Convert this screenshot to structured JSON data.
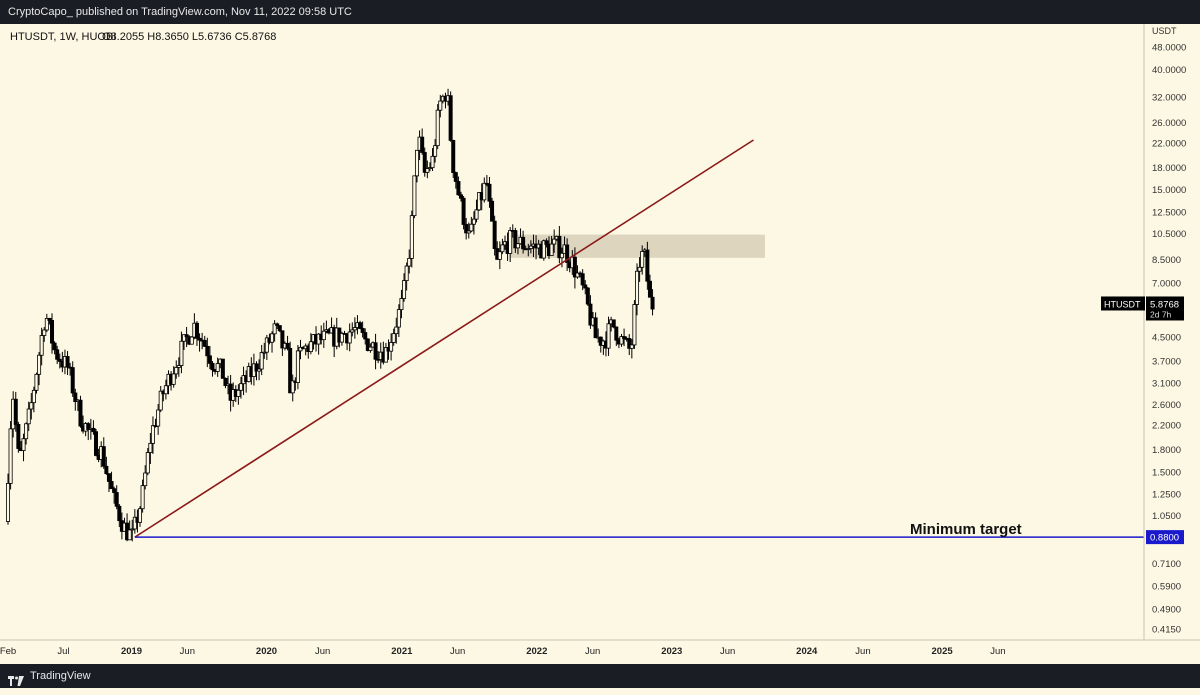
{
  "header": {
    "publisher": "CryptoCapo_ published on TradingView.com, Nov 11, 2022 09:58 UTC"
  },
  "footer": {
    "brand": "TradingView"
  },
  "colors": {
    "background": "#fdf8e4",
    "candle": "#000000",
    "trendline": "#8b1a1a",
    "target_line": "#1a1acc",
    "zone_fill": "#d8cfb8",
    "price_label_bg": "#000000",
    "target_label_bg": "#1a1acc"
  },
  "chart_data": {
    "type": "candlestick",
    "symbol_info": {
      "symbol": "HTUSDT, 1W, HUOBI",
      "open": "O8.2055",
      "high": "H8.3650",
      "low": "L5.6736",
      "close": "C5.8768"
    },
    "y_axis": {
      "unit": "USDT",
      "scale": "log",
      "range": [
        0.38,
        58
      ],
      "ticks": [
        "48.0000",
        "40.0000",
        "32.0000",
        "26.0000",
        "22.0000",
        "18.0000",
        "15.0000",
        "12.5000",
        "10.5000",
        "8.5000",
        "7.0000",
        "5.8768",
        "4.5000",
        "3.7000",
        "3.1000",
        "2.6000",
        "2.2000",
        "1.8000",
        "1.5000",
        "1.2500",
        "1.0500",
        "0.8800",
        "0.7100",
        "0.5900",
        "0.4900",
        "0.4150"
      ]
    },
    "x_axis": {
      "range": [
        "2018-02-01",
        "2026-07-01"
      ],
      "ticks": [
        {
          "label": "Feb",
          "date": "2018-02-01",
          "bold": false
        },
        {
          "label": "Jul",
          "date": "2018-07-01",
          "bold": false
        },
        {
          "label": "2019",
          "date": "2019-01-01",
          "bold": true
        },
        {
          "label": "Jun",
          "date": "2019-06-01",
          "bold": false
        },
        {
          "label": "2020",
          "date": "2020-01-01",
          "bold": true
        },
        {
          "label": "Jun",
          "date": "2020-06-01",
          "bold": false
        },
        {
          "label": "2021",
          "date": "2021-01-01",
          "bold": true
        },
        {
          "label": "Jun",
          "date": "2021-06-01",
          "bold": false
        },
        {
          "label": "2022",
          "date": "2022-01-01",
          "bold": true
        },
        {
          "label": "Jun",
          "date": "2022-06-01",
          "bold": false
        },
        {
          "label": "2023",
          "date": "2023-01-01",
          "bold": true
        },
        {
          "label": "Jun",
          "date": "2023-06-01",
          "bold": false
        },
        {
          "label": "2024",
          "date": "2024-01-01",
          "bold": true
        },
        {
          "label": "Jun",
          "date": "2024-06-01",
          "bold": false
        },
        {
          "label": "2025",
          "date": "2025-01-01",
          "bold": true
        },
        {
          "label": "Jun",
          "date": "2025-06-01",
          "bold": false
        }
      ]
    },
    "price_path": [
      [
        "2018-02-01",
        1.0
      ],
      [
        "2018-02-20",
        3.0
      ],
      [
        "2018-03-10",
        1.6
      ],
      [
        "2018-04-10",
        2.5
      ],
      [
        "2018-05-20",
        5.5
      ],
      [
        "2018-06-15",
        4.0
      ],
      [
        "2018-07-20",
        3.5
      ],
      [
        "2018-08-20",
        2.4
      ],
      [
        "2018-09-20",
        2.0
      ],
      [
        "2018-10-20",
        1.75
      ],
      [
        "2018-11-20",
        1.2
      ],
      [
        "2018-12-20",
        0.95
      ],
      [
        "2019-01-10",
        0.88
      ],
      [
        "2019-02-05",
        1.2
      ],
      [
        "2019-03-01",
        2.0
      ],
      [
        "2019-04-01",
        2.8
      ],
      [
        "2019-05-01",
        3.5
      ],
      [
        "2019-06-01",
        4.3
      ],
      [
        "2019-06-25",
        5.0
      ],
      [
        "2019-07-20",
        4.4
      ],
      [
        "2019-08-15",
        3.7
      ],
      [
        "2019-09-10",
        3.4
      ],
      [
        "2019-10-01",
        2.7
      ],
      [
        "2019-11-01",
        3.0
      ],
      [
        "2019-12-01",
        3.4
      ],
      [
        "2020-01-01",
        4.0
      ],
      [
        "2020-02-01",
        4.8
      ],
      [
        "2020-03-05",
        3.8
      ],
      [
        "2020-03-15",
        2.8
      ],
      [
        "2020-04-05",
        3.9
      ],
      [
        "2020-05-01",
        4.2
      ],
      [
        "2020-06-01",
        4.4
      ],
      [
        "2020-07-01",
        4.5
      ],
      [
        "2020-08-01",
        4.6
      ],
      [
        "2020-09-01",
        4.8
      ],
      [
        "2020-10-01",
        4.4
      ],
      [
        "2020-11-01",
        4.1
      ],
      [
        "2020-11-25",
        4.0
      ],
      [
        "2020-12-15",
        4.7
      ],
      [
        "2021-01-10",
        6.0
      ],
      [
        "2021-02-01",
        10.0
      ],
      [
        "2021-02-20",
        24.0
      ],
      [
        "2021-03-10",
        17.0
      ],
      [
        "2021-04-01",
        19.0
      ],
      [
        "2021-04-20",
        30.0
      ],
      [
        "2021-05-10",
        34.0
      ],
      [
        "2021-05-25",
        19.0
      ],
      [
        "2021-06-15",
        13.5
      ],
      [
        "2021-07-10",
        10.0
      ],
      [
        "2021-08-01",
        13.0
      ],
      [
        "2021-08-25",
        16.0
      ],
      [
        "2021-09-20",
        8.0
      ],
      [
        "2021-10-10",
        9.5
      ],
      [
        "2021-11-01",
        10.0
      ],
      [
        "2021-12-01",
        9.6
      ],
      [
        "2022-01-01",
        9.4
      ],
      [
        "2022-02-01",
        9.3
      ],
      [
        "2022-03-01",
        9.5
      ],
      [
        "2022-03-25",
        9.2
      ],
      [
        "2022-04-15",
        8.2
      ],
      [
        "2022-05-10",
        6.8
      ],
      [
        "2022-05-25",
        5.8
      ],
      [
        "2022-06-15",
        4.5
      ],
      [
        "2022-07-10",
        4.4
      ],
      [
        "2022-08-01",
        5.0
      ],
      [
        "2022-08-25",
        4.4
      ],
      [
        "2022-09-20",
        4.0
      ],
      [
        "2022-10-10",
        8.2
      ],
      [
        "2022-10-25",
        9.0
      ],
      [
        "2022-11-11",
        5.8768
      ]
    ],
    "annotations": {
      "trendline": {
        "from": [
          "2019-01-10",
          0.88
        ],
        "to": [
          "2023-08-10",
          22.5
        ]
      },
      "resistance_zone": {
        "from_date": "2021-10-20",
        "to_date": "2023-09-10",
        "low": 8.6,
        "high": 10.4
      },
      "target_line": {
        "value": 0.88,
        "from_date": "2019-01-10",
        "label": "0.8800"
      },
      "target_text": "Minimum target",
      "last_price": {
        "symbol": "HTUSDT",
        "value": "5.8768",
        "countdown": "2d 7h"
      }
    }
  }
}
